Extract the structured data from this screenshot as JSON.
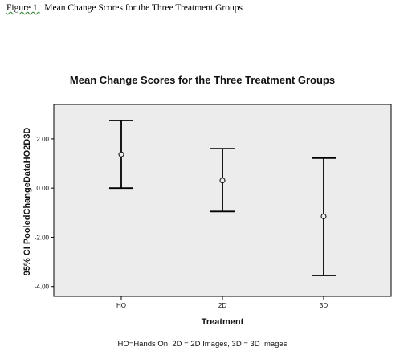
{
  "caption": {
    "label": "Figure 1.",
    "text": "Mean Change Scores for the Three Treatment Groups"
  },
  "colors": {
    "plot_background": "#ececec",
    "frame": "#000000",
    "error_bar": "#000000"
  },
  "chart_data": {
    "type": "errorbar",
    "title": "Mean Change Scores for the Three Treatment Groups",
    "xlabel": "Treatment",
    "ylabel": "95% CI PooledChangeDataHO2D3D",
    "categories": [
      "HO",
      "2D",
      "3D"
    ],
    "means": [
      1.37,
      0.31,
      -1.15
    ],
    "lower": [
      0.0,
      -0.95,
      -3.55
    ],
    "upper": [
      2.75,
      1.6,
      1.22
    ],
    "ylim": [
      -4.4,
      3.4
    ],
    "yticks": [
      -4.0,
      -2.0,
      0.0,
      2.0
    ],
    "ytick_labels": [
      "-4.00",
      "-2.00",
      "0.00",
      "2.00"
    ],
    "grid": false,
    "footnote": "HO=Hands On, 2D = 2D Images, 3D = 3D Images"
  }
}
